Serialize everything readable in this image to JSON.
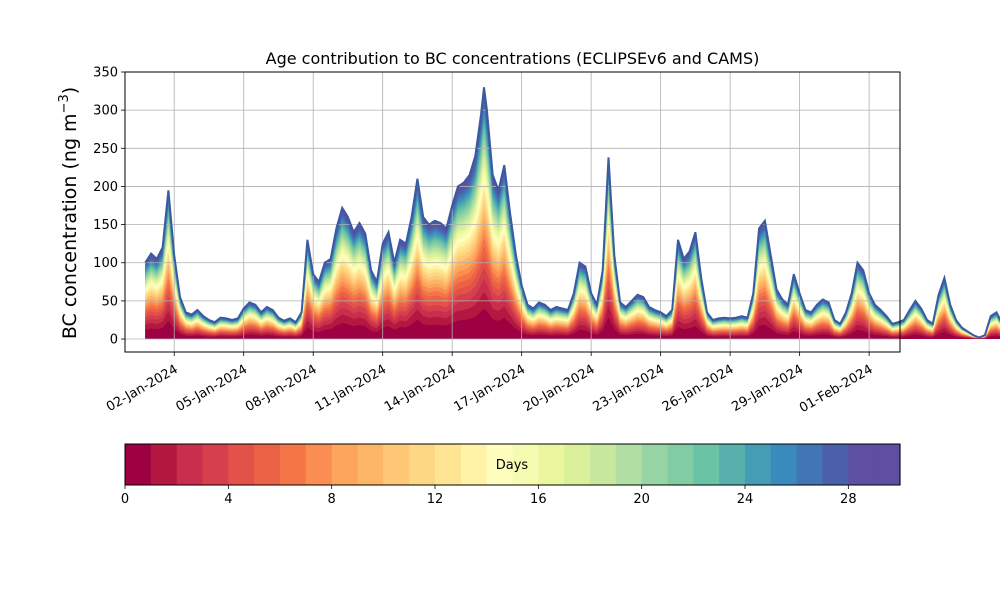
{
  "chart_data": {
    "type": "area",
    "title": "Age contribution to BC concentrations (ECLIPSEv6 and CAMS)",
    "ylabel": "BC concentration (ng m",
    "ylabel_sup": "−3",
    "ylabel_close": ")",
    "ylim": [
      -17,
      350
    ],
    "yticks": [
      0,
      50,
      100,
      150,
      200,
      250,
      300,
      350
    ],
    "xlim": [
      "2023-12-30T21:00",
      "2024-02-02T08:00"
    ],
    "xticks": [
      "2024-01-02",
      "2024-01-05",
      "2024-01-08",
      "2024-01-11",
      "2024-01-14",
      "2024-01-17",
      "2024-01-20",
      "2024-01-23",
      "2024-01-26",
      "2024-01-29",
      "2024-02-01"
    ],
    "xtick_labels": [
      "02-Jan-2024",
      "05-Jan-2024",
      "08-Jan-2024",
      "11-Jan-2024",
      "14-Jan-2024",
      "17-Jan-2024",
      "20-Jan-2024",
      "23-Jan-2024",
      "26-Jan-2024",
      "29-Jan-2024",
      "01-Feb-2024"
    ],
    "grid": true,
    "series": [
      {
        "total": [
          [
            "2023-12-31T18:00",
            100
          ],
          [
            "2024-01-01T00:00",
            112
          ],
          [
            "2024-01-01T06:00",
            105
          ],
          [
            "2024-01-01T12:00",
            120
          ],
          [
            "2024-01-01T18:00",
            195
          ],
          [
            "2024-01-02T00:00",
            110
          ],
          [
            "2024-01-02T06:00",
            55
          ],
          [
            "2024-01-02T12:00",
            35
          ],
          [
            "2024-01-02T18:00",
            32
          ],
          [
            "2024-01-03T00:00",
            38
          ],
          [
            "2024-01-03T06:00",
            30
          ],
          [
            "2024-01-03T12:00",
            25
          ],
          [
            "2024-01-03T18:00",
            22
          ],
          [
            "2024-01-04T00:00",
            28
          ],
          [
            "2024-01-04T06:00",
            27
          ],
          [
            "2024-01-04T12:00",
            25
          ],
          [
            "2024-01-04T18:00",
            27
          ],
          [
            "2024-01-05T00:00",
            40
          ],
          [
            "2024-01-05T06:00",
            48
          ],
          [
            "2024-01-05T12:00",
            45
          ],
          [
            "2024-01-05T18:00",
            35
          ],
          [
            "2024-01-06T00:00",
            42
          ],
          [
            "2024-01-06T06:00",
            38
          ],
          [
            "2024-01-06T12:00",
            28
          ],
          [
            "2024-01-06T18:00",
            24
          ],
          [
            "2024-01-07T00:00",
            27
          ],
          [
            "2024-01-07T06:00",
            22
          ],
          [
            "2024-01-07T12:00",
            35
          ],
          [
            "2024-01-07T18:00",
            130
          ],
          [
            "2024-01-08T00:00",
            85
          ],
          [
            "2024-01-08T06:00",
            75
          ],
          [
            "2024-01-08T12:00",
            100
          ],
          [
            "2024-01-08T18:00",
            105
          ],
          [
            "2024-01-09T00:00",
            145
          ],
          [
            "2024-01-09T06:00",
            172
          ],
          [
            "2024-01-09T12:00",
            160
          ],
          [
            "2024-01-09T18:00",
            140
          ],
          [
            "2024-01-10T00:00",
            152
          ],
          [
            "2024-01-10T06:00",
            138
          ],
          [
            "2024-01-10T12:00",
            90
          ],
          [
            "2024-01-10T18:00",
            75
          ],
          [
            "2024-01-11T00:00",
            125
          ],
          [
            "2024-01-11T06:00",
            140
          ],
          [
            "2024-01-11T12:00",
            100
          ],
          [
            "2024-01-11T18:00",
            130
          ],
          [
            "2024-01-12T00:00",
            125
          ],
          [
            "2024-01-12T06:00",
            160
          ],
          [
            "2024-01-12T12:00",
            210
          ],
          [
            "2024-01-12T18:00",
            160
          ],
          [
            "2024-01-13T00:00",
            150
          ],
          [
            "2024-01-13T06:00",
            155
          ],
          [
            "2024-01-13T12:00",
            152
          ],
          [
            "2024-01-13T18:00",
            145
          ],
          [
            "2024-01-14T00:00",
            175
          ],
          [
            "2024-01-14T06:00",
            200
          ],
          [
            "2024-01-14T12:00",
            205
          ],
          [
            "2024-01-14T18:00",
            215
          ],
          [
            "2024-01-15T00:00",
            240
          ],
          [
            "2024-01-15T06:00",
            295
          ],
          [
            "2024-01-15T09:00",
            330
          ],
          [
            "2024-01-15T12:00",
            300
          ],
          [
            "2024-01-15T18:00",
            215
          ],
          [
            "2024-01-16T00:00",
            195
          ],
          [
            "2024-01-16T06:00",
            228
          ],
          [
            "2024-01-16T12:00",
            165
          ],
          [
            "2024-01-16T18:00",
            110
          ],
          [
            "2024-01-17T00:00",
            70
          ],
          [
            "2024-01-17T06:00",
            45
          ],
          [
            "2024-01-17T12:00",
            40
          ],
          [
            "2024-01-17T18:00",
            48
          ],
          [
            "2024-01-18T00:00",
            45
          ],
          [
            "2024-01-18T06:00",
            38
          ],
          [
            "2024-01-18T12:00",
            42
          ],
          [
            "2024-01-18T18:00",
            40
          ],
          [
            "2024-01-19T00:00",
            38
          ],
          [
            "2024-01-19T06:00",
            60
          ],
          [
            "2024-01-19T12:00",
            100
          ],
          [
            "2024-01-19T18:00",
            95
          ],
          [
            "2024-01-20T00:00",
            60
          ],
          [
            "2024-01-20T06:00",
            45
          ],
          [
            "2024-01-20T12:00",
            90
          ],
          [
            "2024-01-20T18:00",
            238
          ],
          [
            "2024-01-21T00:00",
            110
          ],
          [
            "2024-01-21T06:00",
            48
          ],
          [
            "2024-01-21T12:00",
            42
          ],
          [
            "2024-01-21T18:00",
            50
          ],
          [
            "2024-01-22T00:00",
            58
          ],
          [
            "2024-01-22T06:00",
            55
          ],
          [
            "2024-01-22T12:00",
            42
          ],
          [
            "2024-01-22T18:00",
            38
          ],
          [
            "2024-01-23T00:00",
            35
          ],
          [
            "2024-01-23T06:00",
            30
          ],
          [
            "2024-01-23T12:00",
            38
          ],
          [
            "2024-01-23T18:00",
            130
          ],
          [
            "2024-01-24T00:00",
            105
          ],
          [
            "2024-01-24T06:00",
            115
          ],
          [
            "2024-01-24T12:00",
            140
          ],
          [
            "2024-01-24T18:00",
            80
          ],
          [
            "2024-01-25T00:00",
            35
          ],
          [
            "2024-01-25T06:00",
            25
          ],
          [
            "2024-01-25T12:00",
            27
          ],
          [
            "2024-01-25T18:00",
            28
          ],
          [
            "2024-01-26T00:00",
            27
          ],
          [
            "2024-01-26T06:00",
            28
          ],
          [
            "2024-01-26T12:00",
            30
          ],
          [
            "2024-01-26T18:00",
            28
          ],
          [
            "2024-01-27T00:00",
            60
          ],
          [
            "2024-01-27T06:00",
            145
          ],
          [
            "2024-01-27T12:00",
            155
          ],
          [
            "2024-01-27T18:00",
            110
          ],
          [
            "2024-01-28T00:00",
            65
          ],
          [
            "2024-01-28T06:00",
            52
          ],
          [
            "2024-01-28T12:00",
            45
          ],
          [
            "2024-01-28T18:00",
            85
          ],
          [
            "2024-01-29T00:00",
            60
          ],
          [
            "2024-01-29T06:00",
            38
          ],
          [
            "2024-01-29T12:00",
            35
          ],
          [
            "2024-01-29T18:00",
            45
          ],
          [
            "2024-01-30T00:00",
            52
          ],
          [
            "2024-01-30T06:00",
            48
          ],
          [
            "2024-01-30T12:00",
            25
          ],
          [
            "2024-01-30T18:00",
            20
          ],
          [
            "2024-01-31T00:00",
            35
          ],
          [
            "2024-01-31T06:00",
            60
          ],
          [
            "2024-01-31T12:00",
            100
          ],
          [
            "2024-01-31T18:00",
            90
          ],
          [
            "2024-02-01T00:00",
            60
          ],
          [
            "2024-02-01T06:00",
            45
          ],
          [
            "2024-02-01T12:00",
            38
          ],
          [
            "2024-02-01T18:00",
            30
          ],
          [
            "2024-02-02T00:00",
            20
          ],
          [
            "2024-02-02T06:00",
            22
          ],
          [
            "2024-02-02T12:00",
            25
          ],
          [
            "2024-02-02T18:00",
            38
          ],
          [
            "2024-02-03T00:00",
            50
          ],
          [
            "2024-02-03T06:00",
            40
          ],
          [
            "2024-02-03T12:00",
            25
          ],
          [
            "2024-02-03T18:00",
            20
          ],
          [
            "2024-02-04T00:00",
            58
          ],
          [
            "2024-02-04T06:00",
            80
          ],
          [
            "2024-02-04T12:00",
            45
          ],
          [
            "2024-02-04T18:00",
            25
          ],
          [
            "2024-02-05T00:00",
            15
          ],
          [
            "2024-02-05T06:00",
            10
          ],
          [
            "2024-02-05T12:00",
            5
          ],
          [
            "2024-02-05T18:00",
            2
          ],
          [
            "2024-02-06T00:00",
            5
          ],
          [
            "2024-02-06T06:00",
            30
          ],
          [
            "2024-02-06T12:00",
            35
          ],
          [
            "2024-02-06T18:00",
            20
          ]
        ]
      }
    ],
    "colorbar": {
      "label": "Days",
      "range": [
        0,
        30
      ],
      "ticks": [
        0,
        4,
        8,
        12,
        16,
        20,
        24,
        28
      ],
      "colors": [
        "#9e0142",
        "#b4173f",
        "#c92e4c",
        "#d6404e",
        "#e25249",
        "#eb6346",
        "#f57547",
        "#f98d52",
        "#fca55d",
        "#fdb567",
        "#fec877",
        "#fed785",
        "#fee593",
        "#fff3a7",
        "#fffebe",
        "#f6fbb2",
        "#eaf79f",
        "#dbf09a",
        "#c7e89e",
        "#b1dfa3",
        "#98d5a4",
        "#82cca5",
        "#6bc3a5",
        "#57b0ab",
        "#449db4",
        "#3b8abe",
        "#4275b3",
        "#4b60aa",
        "#5e4fa2",
        "#5e4fa2"
      ]
    }
  }
}
